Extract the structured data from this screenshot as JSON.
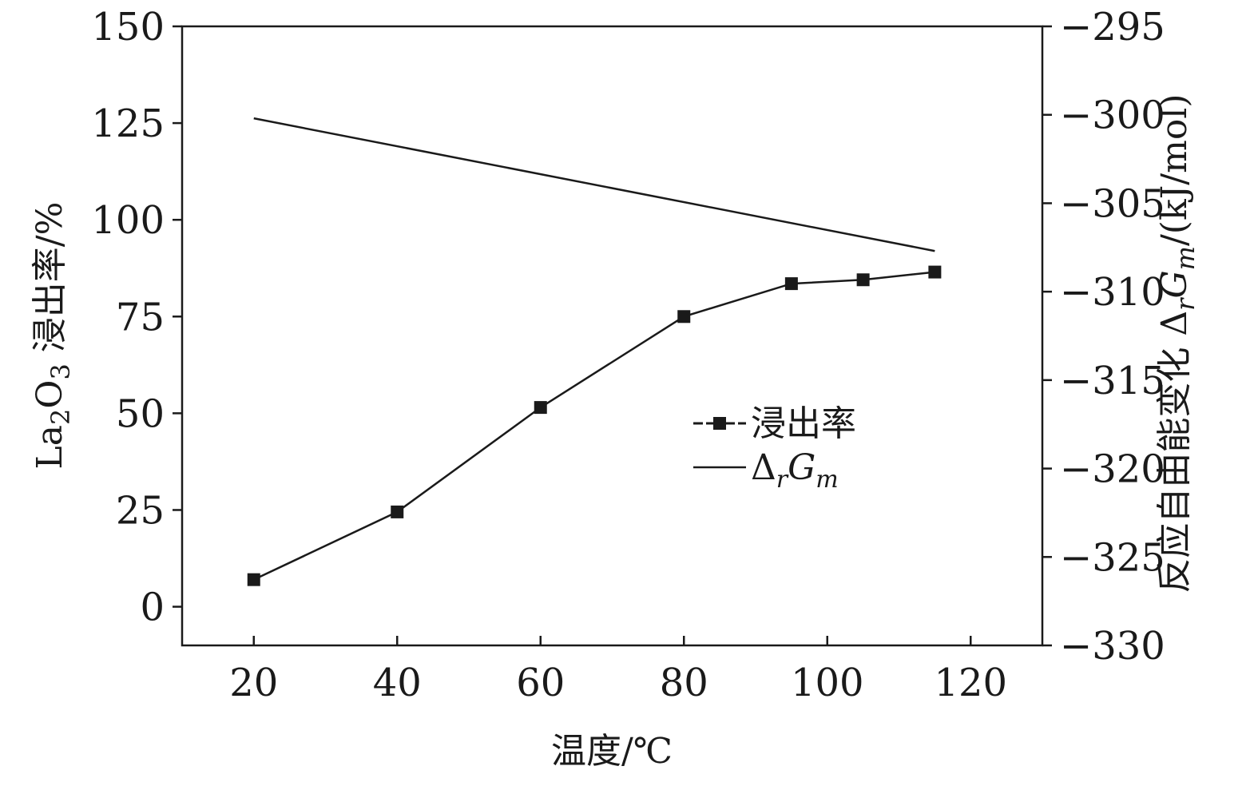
{
  "chart_data": {
    "type": "line",
    "x": [
      20,
      40,
      60,
      80,
      95,
      105,
      115
    ],
    "xlim": [
      10,
      130
    ],
    "xticks": [
      20,
      40,
      60,
      80,
      100,
      120
    ],
    "xlabel": "温度/℃",
    "ylim_left": [
      -10,
      150
    ],
    "yticks_left": [
      0,
      25,
      50,
      75,
      100,
      125,
      150
    ],
    "ylabel_left": {
      "prefix": "La",
      "sub1": "2",
      "mid": "O",
      "sub2": "3",
      "suffix": " 浸出率/%"
    },
    "ylim_right": [
      -330,
      -295
    ],
    "yticks_right": [
      -330,
      -325,
      -320,
      -315,
      -310,
      -305,
      -300,
      -295
    ],
    "ylabel_right": {
      "prefix": "反应自由能变化 Δ",
      "sub1": "r",
      "mid": "G",
      "sub2": "m",
      "suffix": "/(kJ/mol)"
    },
    "series": [
      {
        "name": "浸出率",
        "axis": "left",
        "marker": "square",
        "values": [
          7,
          24.5,
          51.5,
          75,
          83.5,
          84.5,
          86.5
        ]
      },
      {
        "name_main": "Δ",
        "name_sub1": "r",
        "name_mid": "G",
        "name_sub2": "m",
        "axis": "right",
        "marker": "none",
        "x": [
          20,
          115
        ],
        "values": [
          -300.2,
          -307.7
        ]
      }
    ],
    "grid": false,
    "legend_position": "center-right"
  }
}
